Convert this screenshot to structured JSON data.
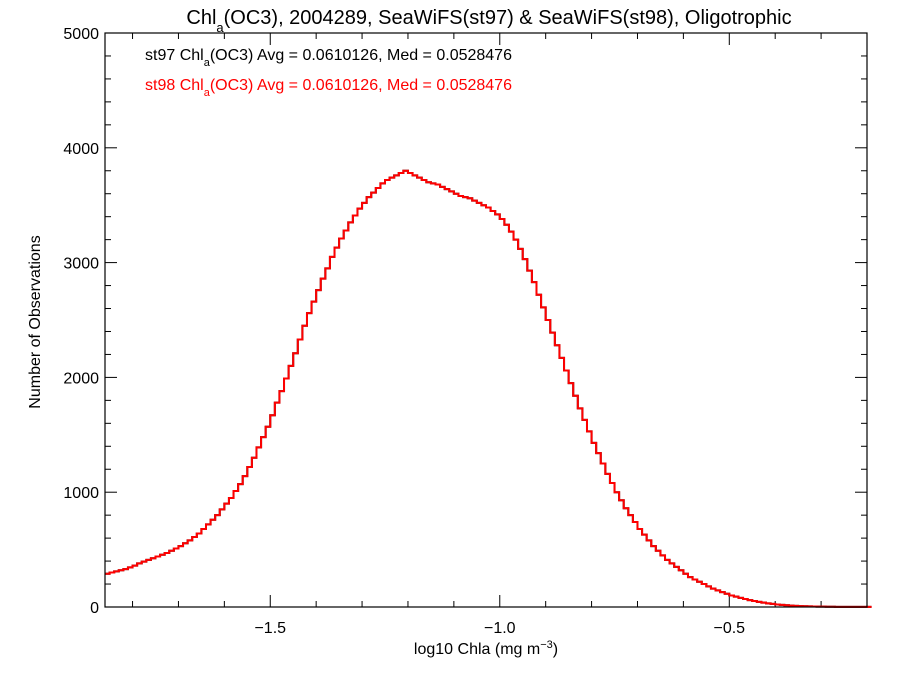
{
  "chart_data": {
    "type": "histogram",
    "title": {
      "prefix": "Chl",
      "sub": "a",
      "suffix": "(OC3), 2004289, SeaWiFS(st97) & SeaWiFS(st98), Oligotrophic"
    },
    "xlabel": {
      "prefix": "log10 Chla (mg m",
      "sup": "−3",
      "suffix": ")"
    },
    "ylabel": "Number of Observations",
    "xlim": [
      -1.86,
      -0.2
    ],
    "ylim": [
      0,
      5000
    ],
    "x_ticks": [
      {
        "value": -1.5,
        "label": "−1.5"
      },
      {
        "value": -1.0,
        "label": "−1.0"
      },
      {
        "value": -0.5,
        "label": "−0.5"
      }
    ],
    "y_ticks": [
      {
        "value": 0,
        "label": "0"
      },
      {
        "value": 1000,
        "label": "1000"
      },
      {
        "value": 2000,
        "label": "2000"
      },
      {
        "value": 3000,
        "label": "3000"
      },
      {
        "value": 4000,
        "label": "4000"
      },
      {
        "value": 5000,
        "label": "5000"
      }
    ],
    "annotations": [
      {
        "series": "st97",
        "prefix": "st97 Chl",
        "sub": "a",
        "suffix": "(OC3) Avg = 0.0610126, Med = 0.0528476",
        "color": "#000000"
      },
      {
        "series": "st98",
        "prefix": "st98 Chl",
        "sub": "a",
        "suffix": "(OC3) Avg = 0.0610126, Med = 0.0528476",
        "color": "#ff0000"
      }
    ],
    "bin_start": -1.86,
    "bin_width": 0.01,
    "series": [
      {
        "name": "st98",
        "color": "#ff0000",
        "values": [
          290,
          300,
          310,
          320,
          330,
          345,
          360,
          380,
          395,
          410,
          425,
          440,
          455,
          470,
          490,
          510,
          530,
          555,
          580,
          610,
          640,
          680,
          720,
          760,
          800,
          850,
          900,
          950,
          1010,
          1070,
          1140,
          1220,
          1300,
          1390,
          1480,
          1570,
          1670,
          1780,
          1880,
          1990,
          2100,
          2210,
          2330,
          2450,
          2560,
          2660,
          2760,
          2860,
          2950,
          3050,
          3130,
          3210,
          3280,
          3350,
          3410,
          3470,
          3520,
          3570,
          3610,
          3650,
          3690,
          3720,
          3740,
          3760,
          3780,
          3800,
          3780,
          3760,
          3740,
          3720,
          3700,
          3690,
          3680,
          3660,
          3640,
          3620,
          3600,
          3580,
          3570,
          3560,
          3540,
          3520,
          3500,
          3480,
          3450,
          3420,
          3380,
          3330,
          3270,
          3200,
          3120,
          3030,
          2930,
          2830,
          2720,
          2610,
          2500,
          2390,
          2280,
          2170,
          2060,
          1950,
          1840,
          1730,
          1630,
          1530,
          1430,
          1340,
          1250,
          1160,
          1080,
          1000,
          930,
          860,
          800,
          740,
          680,
          630,
          580,
          530,
          490,
          450,
          410,
          380,
          350,
          320,
          290,
          260,
          240,
          220,
          200,
          180,
          160,
          145,
          130,
          115,
          100,
          90,
          80,
          70,
          60,
          52,
          45,
          38,
          32,
          27,
          22,
          18,
          15,
          12,
          10,
          8,
          6,
          5,
          4,
          3,
          3,
          2,
          2,
          1,
          1,
          1,
          1,
          1,
          1,
          1,
          1
        ]
      },
      {
        "name": "st97",
        "color": "#000000",
        "values": [
          290,
          300,
          310,
          320,
          330,
          345,
          360,
          380,
          395,
          410,
          425,
          440,
          455,
          470,
          490,
          510,
          530,
          555,
          580,
          610,
          640,
          680,
          720,
          760,
          800,
          850,
          900,
          950,
          1010,
          1070,
          1140,
          1220,
          1300,
          1390,
          1480,
          1570,
          1670,
          1780,
          1880,
          1990,
          2100,
          2210,
          2330,
          2450,
          2560,
          2660,
          2760,
          2860,
          2950,
          3050,
          3130,
          3210,
          3280,
          3350,
          3410,
          3470,
          3520,
          3570,
          3610,
          3650,
          3690,
          3720,
          3740,
          3760,
          3780,
          3800,
          3780,
          3760,
          3740,
          3720,
          3700,
          3690,
          3680,
          3660,
          3640,
          3620,
          3600,
          3580,
          3570,
          3560,
          3540,
          3520,
          3500,
          3480,
          3450,
          3420,
          3380,
          3330,
          3270,
          3200,
          3120,
          3030,
          2930,
          2830,
          2720,
          2610,
          2500,
          2390,
          2280,
          2170,
          2060,
          1950,
          1840,
          1730,
          1630,
          1530,
          1430,
          1340,
          1250,
          1160,
          1080,
          1000,
          930,
          860,
          800,
          740,
          680,
          630,
          580,
          530,
          490,
          450,
          410,
          380,
          350,
          320,
          290,
          260,
          240,
          220,
          200,
          180,
          160,
          145,
          130,
          115,
          100,
          90,
          80,
          70,
          60,
          52,
          45,
          38,
          32,
          27,
          22,
          18,
          15,
          12,
          10,
          8,
          6,
          5,
          4,
          3,
          3,
          2,
          2,
          1,
          1,
          1,
          1,
          1,
          1,
          1,
          1
        ]
      }
    ]
  }
}
